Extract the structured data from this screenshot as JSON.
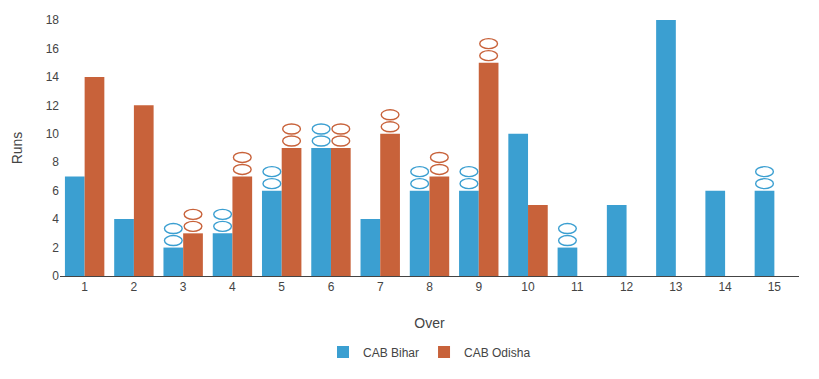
{
  "chart_data": {
    "type": "bar",
    "categories": [
      1,
      2,
      3,
      4,
      5,
      6,
      7,
      8,
      9,
      10,
      11,
      12,
      13,
      14,
      15
    ],
    "series": [
      {
        "name": "CAB Bihar",
        "color": "#3b9fd1",
        "values": [
          7,
          4,
          2,
          3,
          6,
          9,
          4,
          6,
          6,
          10,
          2,
          5,
          18,
          6,
          6
        ],
        "wicket_overs": [
          3,
          4,
          5,
          6,
          8,
          9,
          11,
          15
        ],
        "wicket_values": [
          2,
          3,
          6,
          9,
          6,
          6,
          2,
          6
        ]
      },
      {
        "name": "CAB Odisha",
        "color": "#c8623a",
        "values": [
          14,
          12,
          3,
          7,
          9,
          9,
          10,
          7,
          15,
          5,
          0,
          0,
          0,
          0,
          0
        ],
        "wicket_overs": [
          3,
          4,
          5,
          6,
          7,
          8,
          9
        ],
        "wicket_values": [
          3,
          7,
          9,
          9,
          10,
          7,
          15
        ]
      }
    ],
    "xlabel": "Over",
    "ylabel": "Runs",
    "ylim": [
      0,
      18
    ],
    "yticks": [
      0,
      2,
      4,
      6,
      8,
      10,
      12,
      14,
      16,
      18
    ],
    "grid": false,
    "legend": "bottom"
  }
}
